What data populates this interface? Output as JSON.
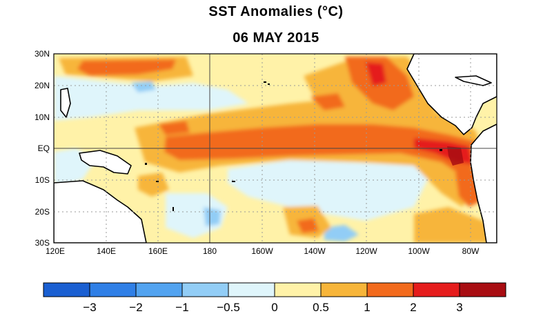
{
  "title": "SST Anomalies (°C)",
  "subtitle": "06 MAY 2015",
  "map": {
    "lat_ticks": [
      "30N",
      "20N",
      "10N",
      "EQ",
      "10S",
      "20S",
      "30S"
    ],
    "lon_ticks": [
      "120E",
      "140E",
      "160E",
      "180",
      "160W",
      "140W",
      "120W",
      "100W",
      "80W"
    ],
    "colors": {
      "land": "#ffffff",
      "coast": "#000000",
      "grid": "#9a9a9a"
    }
  },
  "colorbar": {
    "bins": [
      {
        "color": "#1a5fd1"
      },
      {
        "color": "#2f7fe6"
      },
      {
        "color": "#52a3f0"
      },
      {
        "color": "#92cdf6"
      },
      {
        "color": "#dff5fb"
      },
      {
        "color": "#fff2a8"
      },
      {
        "color": "#f7b53a"
      },
      {
        "color": "#f26a1c"
      },
      {
        "color": "#e51c1c"
      },
      {
        "color": "#a80d12"
      }
    ],
    "labels": [
      "−3",
      "−2",
      "−1",
      "−0.5",
      "0",
      "0.5",
      "1",
      "2",
      "3"
    ]
  }
}
